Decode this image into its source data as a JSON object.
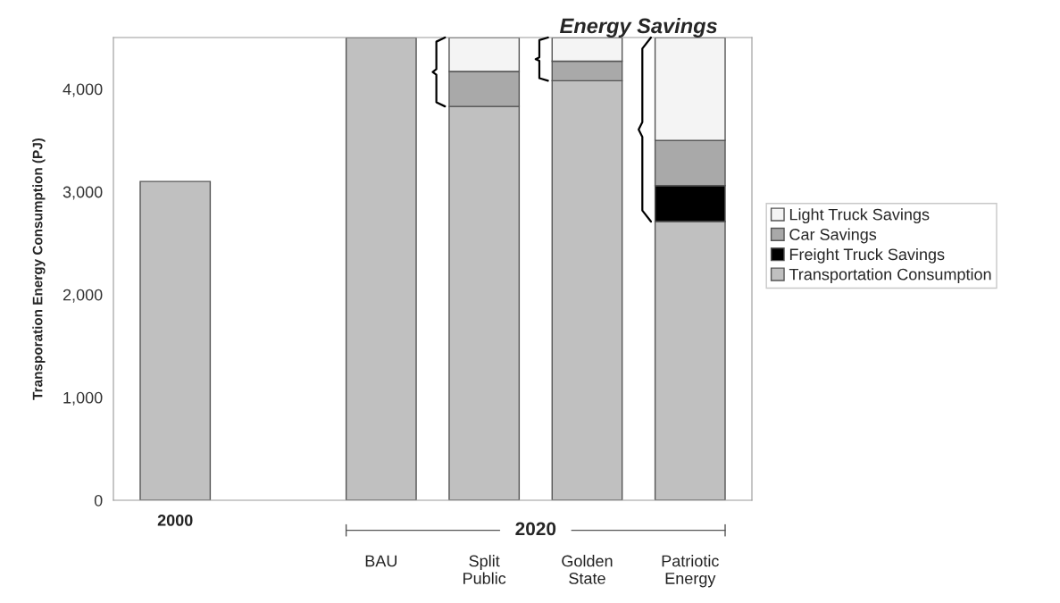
{
  "chart_data": {
    "type": "bar",
    "stacked": true,
    "categories": [
      "2000",
      null,
      "BAU",
      "Split Public",
      "Golden State",
      "Patriotic Energy"
    ],
    "ylabel": "Transporation Energy Consumption (PJ)",
    "series": [
      {
        "name": "Transportation Consumption",
        "color": "#c0c0c0",
        "values": [
          3100,
          null,
          4500,
          3830,
          4080,
          2710
        ]
      },
      {
        "name": "Freight Truck Savings",
        "color": "#000000",
        "values": [
          null,
          null,
          null,
          null,
          null,
          350
        ]
      },
      {
        "name": "Car Savings",
        "color": "#a9a9a9",
        "values": [
          null,
          null,
          null,
          340,
          190,
          440
        ]
      },
      {
        "name": "Light Truck Savings",
        "color": "#f4f4f4",
        "values": [
          null,
          null,
          null,
          330,
          230,
          1000
        ]
      }
    ],
    "ylim": [
      0,
      4500
    ],
    "yticks": [
      {
        "value": 0,
        "label": "0"
      },
      {
        "value": 1000,
        "label": "1,000"
      },
      {
        "value": 2000,
        "label": "2,000"
      },
      {
        "value": 3000,
        "label": "3,000"
      },
      {
        "value": 4000,
        "label": "4,000"
      }
    ],
    "annotations": [
      "Energy Savings",
      "2020"
    ],
    "legend": "right",
    "grid": false
  }
}
